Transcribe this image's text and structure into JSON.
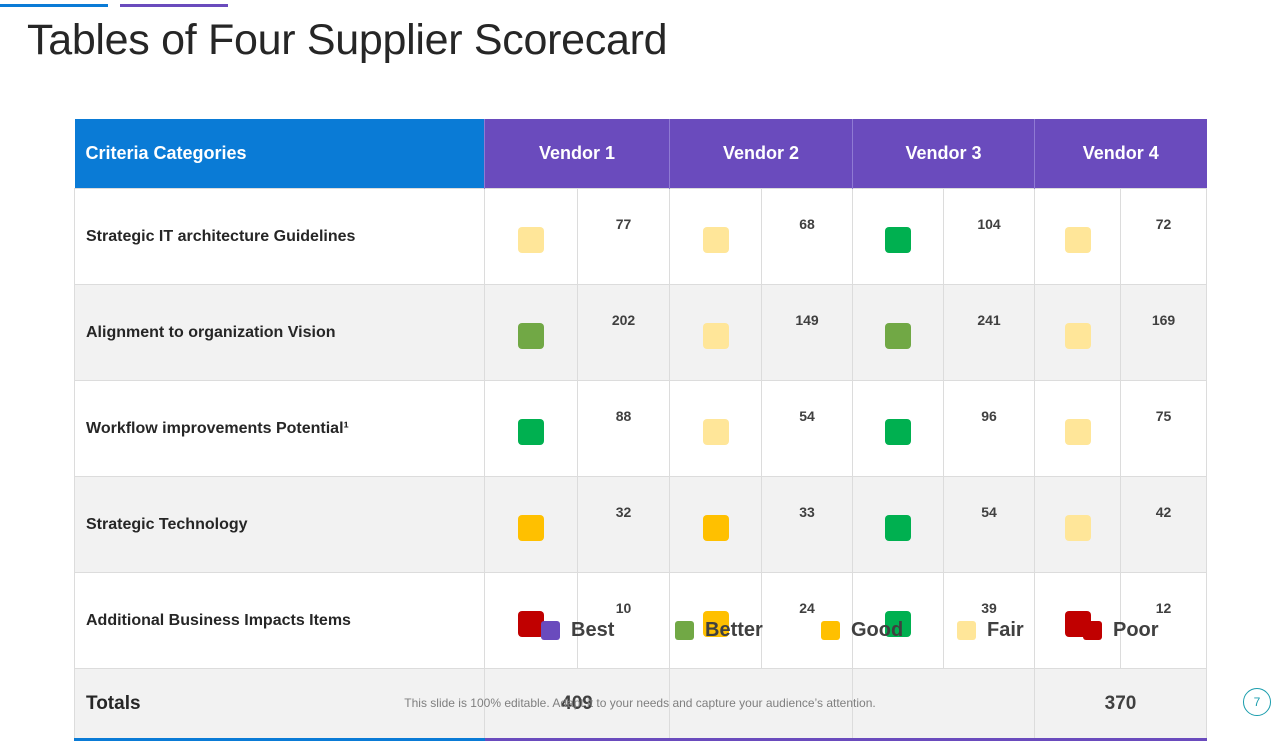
{
  "title": "Tables of Four Supplier Scorecard",
  "colors": {
    "best": "#6a4bbd",
    "better": "#71a845",
    "good": "#ffc000",
    "fair": "#ffe699",
    "poor": "#c00000",
    "strong_green": "#00b050"
  },
  "table": {
    "criteria_header": "Criteria Categories",
    "vendors": [
      "Vendor 1",
      "Vendor 2",
      "Vendor 3",
      "Vendor 4"
    ],
    "rows": [
      {
        "label": "Strategic IT architecture Guidelines",
        "cells": [
          {
            "color": "#ffe699",
            "value": "77"
          },
          {
            "color": "#ffe699",
            "value": "68"
          },
          {
            "color": "#00b050",
            "value": "104"
          },
          {
            "color": "#ffe699",
            "value": "72"
          }
        ]
      },
      {
        "label": "Alignment to organization Vision",
        "cells": [
          {
            "color": "#71a845",
            "value": "202"
          },
          {
            "color": "#ffe699",
            "value": "149"
          },
          {
            "color": "#71a845",
            "value": "241"
          },
          {
            "color": "#ffe699",
            "value": "169"
          }
        ]
      },
      {
        "label": "Workflow improvements Potential¹",
        "cells": [
          {
            "color": "#00b050",
            "value": "88"
          },
          {
            "color": "#ffe699",
            "value": "54"
          },
          {
            "color": "#00b050",
            "value": "96"
          },
          {
            "color": "#ffe699",
            "value": "75"
          }
        ]
      },
      {
        "label": "Strategic Technology",
        "cells": [
          {
            "color": "#ffc000",
            "value": "32"
          },
          {
            "color": "#ffc000",
            "value": "33"
          },
          {
            "color": "#00b050",
            "value": "54"
          },
          {
            "color": "#ffe699",
            "value": "42"
          }
        ]
      },
      {
        "label": "Additional Business Impacts Items",
        "cells": [
          {
            "color": "#c00000",
            "value": "10"
          },
          {
            "color": "#ffc000",
            "value": "24"
          },
          {
            "color": "#00b050",
            "value": "39"
          },
          {
            "color": "#c00000",
            "value": "12"
          }
        ]
      }
    ],
    "totals_label": "Totals",
    "totals": [
      "409",
      "",
      "",
      "370"
    ]
  },
  "legend": [
    {
      "label": "Best",
      "color": "#6a4bbd"
    },
    {
      "label": "Better",
      "color": "#71a845"
    },
    {
      "label": "Good",
      "color": "#ffc000"
    },
    {
      "label": "Fair",
      "color": "#ffe699"
    },
    {
      "label": "Poor",
      "color": "#c00000"
    }
  ],
  "footer": "This slide is 100% editable. Adapt it to your needs and capture your audience’s attention.",
  "page_number": "7"
}
